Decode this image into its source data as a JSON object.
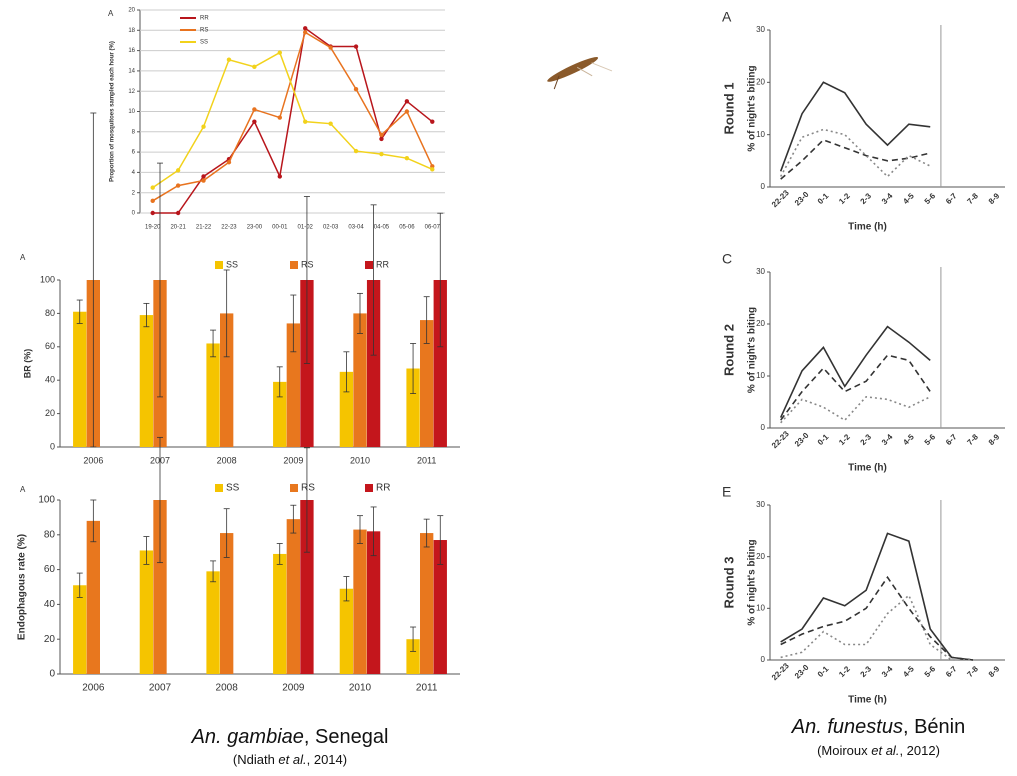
{
  "chart_data": [
    {
      "type": "line",
      "panel": "A",
      "ylabel": "Proportion of mosquitoes sampled each hour (%)",
      "categories": [
        "19-20",
        "20-21",
        "21-22",
        "22-23",
        "23-00",
        "00-01",
        "01-02",
        "02-03",
        "03-04",
        "04-05",
        "05-06",
        "06-07"
      ],
      "ylim": [
        0,
        20
      ],
      "yticks": [
        0,
        2,
        4,
        6,
        8,
        10,
        12,
        14,
        16,
        18,
        20
      ],
      "grid": true,
      "markers": true,
      "series": [
        {
          "name": "RR",
          "color": "#b8161c",
          "values": [
            0,
            0,
            3.6,
            5.3,
            9,
            3.6,
            18.2,
            16.4,
            16.4,
            7.3,
            11,
            9
          ]
        },
        {
          "name": "RS",
          "color": "#e8731f",
          "values": [
            1.2,
            2.7,
            3.2,
            5,
            10.2,
            9.4,
            17.8,
            16.3,
            12.2,
            7.7,
            10,
            4.6
          ]
        },
        {
          "name": "SS",
          "color": "#f2d21b",
          "values": [
            2.5,
            4.2,
            8.5,
            15.1,
            14.4,
            15.8,
            9,
            8.8,
            6.1,
            5.8,
            5.4,
            4.3
          ]
        }
      ]
    },
    {
      "type": "bar",
      "panel": "A",
      "ylabel": "BR (%)",
      "categories": [
        "2006",
        "2007",
        "2008",
        "2009",
        "2010",
        "2011"
      ],
      "ylim": [
        0,
        100
      ],
      "yticks": [
        0,
        20,
        40,
        60,
        80,
        100
      ],
      "series": [
        {
          "name": "SS",
          "color": "#f5c400",
          "values": [
            81,
            79,
            62,
            39,
            45,
            47
          ],
          "errors": [
            7,
            7,
            8,
            9,
            12,
            15
          ]
        },
        {
          "name": "RS",
          "color": "#e8771e",
          "values": [
            100,
            100,
            80,
            74,
            80,
            76
          ],
          "errors": [
            100,
            70,
            26,
            17,
            12,
            14
          ]
        },
        {
          "name": "RR",
          "color": "#c4161c",
          "values": [
            null,
            null,
            null,
            100,
            100,
            100
          ],
          "errors": [
            null,
            null,
            null,
            50,
            45,
            40
          ]
        }
      ]
    },
    {
      "type": "bar",
      "panel": "A",
      "ylabel": "Endophagous rate (%)",
      "categories": [
        "2006",
        "2007",
        "2008",
        "2009",
        "2010",
        "2011"
      ],
      "ylim": [
        0,
        100
      ],
      "yticks": [
        0,
        20,
        40,
        60,
        80,
        100
      ],
      "series": [
        {
          "name": "SS",
          "color": "#f5c400",
          "values": [
            51,
            71,
            59,
            69,
            49,
            20
          ],
          "errors": [
            7,
            8,
            6,
            6,
            7,
            7
          ]
        },
        {
          "name": "RS",
          "color": "#e8771e",
          "values": [
            88,
            100,
            81,
            89,
            83,
            81
          ],
          "errors": [
            12,
            36,
            14,
            8,
            8,
            8
          ]
        },
        {
          "name": "RR",
          "color": "#c4161c",
          "values": [
            null,
            null,
            null,
            100,
            82,
            77
          ],
          "errors": [
            null,
            null,
            null,
            30,
            14,
            14
          ]
        }
      ]
    },
    {
      "type": "line",
      "panel": "A",
      "title": "Round 1",
      "ylabel": "% of night's biting",
      "xlabel": "Time (h)",
      "categories": [
        "22-23",
        "23-0",
        "0-1",
        "1-2",
        "2-3",
        "3-4",
        "4-5",
        "5-6",
        "6-7",
        "7-8",
        "8-9"
      ],
      "ylim": [
        0,
        30
      ],
      "yticks": [
        0,
        10,
        20,
        30
      ],
      "series": [
        {
          "color": "#333333",
          "dash": "solid",
          "values": [
            3,
            14,
            20,
            18,
            12,
            8,
            12,
            11.5,
            null,
            null,
            null
          ]
        },
        {
          "color": "#333333",
          "dash": "dashed",
          "values": [
            1.5,
            5,
            9,
            7.5,
            6,
            5,
            5.5,
            6.5,
            null,
            null,
            null
          ]
        },
        {
          "color": "#888888",
          "dash": "dotted",
          "values": [
            2,
            9.5,
            11,
            10,
            6,
            2,
            6,
            4,
            null,
            null,
            null
          ]
        }
      ]
    },
    {
      "type": "line",
      "panel": "C",
      "title": "Round 2",
      "ylabel": "% of night's biting",
      "xlabel": "Time (h)",
      "categories": [
        "22-23",
        "23-0",
        "0-1",
        "1-2",
        "2-3",
        "3-4",
        "4-5",
        "5-6",
        "6-7",
        "7-8",
        "8-9"
      ],
      "ylim": [
        0,
        30
      ],
      "yticks": [
        0,
        10,
        20,
        30
      ],
      "series": [
        {
          "color": "#333333",
          "dash": "solid",
          "values": [
            2,
            11,
            15.5,
            8,
            14,
            19.5,
            16.5,
            13,
            null,
            null,
            null
          ]
        },
        {
          "color": "#333333",
          "dash": "dashed",
          "values": [
            1.5,
            7,
            11.5,
            7,
            9,
            14,
            13,
            7,
            null,
            null,
            null
          ]
        },
        {
          "color": "#888888",
          "dash": "dotted",
          "values": [
            1,
            5.5,
            4,
            1.5,
            6,
            5.5,
            4,
            6,
            null,
            null,
            null
          ]
        }
      ]
    },
    {
      "type": "line",
      "panel": "E",
      "title": "Round 3",
      "ylabel": "% of night's biting",
      "xlabel": "Time (h)",
      "categories": [
        "22-23",
        "23-0",
        "0-1",
        "1-2",
        "2-3",
        "3-4",
        "4-5",
        "5-6",
        "6-7",
        "7-8",
        "8-9"
      ],
      "ylim": [
        0,
        30
      ],
      "yticks": [
        0,
        10,
        20,
        30
      ],
      "series": [
        {
          "color": "#333333",
          "dash": "solid",
          "values": [
            3.5,
            6,
            12,
            10.5,
            13.5,
            24.5,
            23,
            6,
            0.5,
            0,
            null
          ]
        },
        {
          "color": "#333333",
          "dash": "dashed",
          "values": [
            3,
            5,
            6.5,
            7.5,
            10,
            16,
            10,
            4.5,
            0.5,
            0,
            null
          ]
        },
        {
          "color": "#888888",
          "dash": "dotted",
          "values": [
            0.5,
            1.5,
            5.5,
            3,
            3,
            9,
            12.5,
            3,
            0,
            0,
            null
          ]
        }
      ]
    }
  ],
  "captions": [
    {
      "species": "An. gambiae",
      "place": ", Senegal",
      "author": "(Ndiath ",
      "etal": "et al.",
      "year": ", 2014)"
    },
    {
      "species": "An. funestus",
      "place": ", Bénin",
      "author": "(Moiroux ",
      "etal": "et al.",
      "year": ", 2012)"
    }
  ]
}
